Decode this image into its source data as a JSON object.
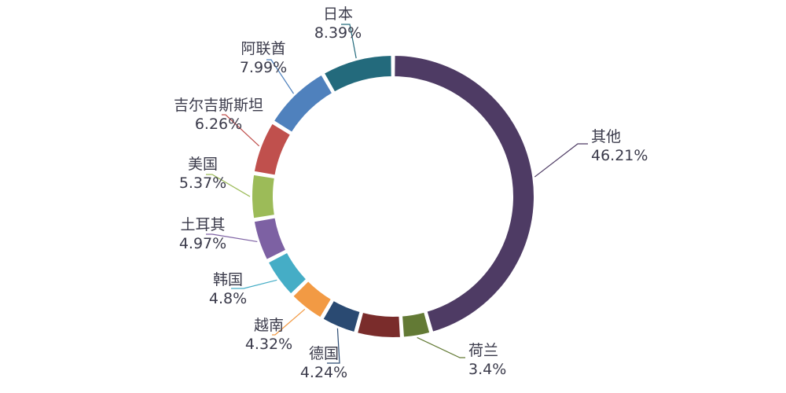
{
  "chart_data": {
    "type": "pie",
    "donut": true,
    "title": "",
    "legend": "none",
    "unit": "%",
    "slices": [
      {
        "name": "其他",
        "value": 46.21,
        "label": "46.21%",
        "color": "#4e3b64"
      },
      {
        "name": "荷兰",
        "value": 3.4,
        "label": "3.4%",
        "color": "#637a35"
      },
      {
        "name": "",
        "value": 5.33,
        "label": "",
        "color": "#7a2c2b"
      },
      {
        "name": "德国",
        "value": 4.24,
        "label": "4.24%",
        "color": "#2a4a72"
      },
      {
        "name": "越南",
        "value": 4.32,
        "label": "4.32%",
        "color": "#f29a44"
      },
      {
        "name": "韩国",
        "value": 4.8,
        "label": "4.8%",
        "color": "#45adc6"
      },
      {
        "name": "土耳其",
        "value": 4.97,
        "label": "4.97%",
        "color": "#7d61a3"
      },
      {
        "name": "美国",
        "value": 5.37,
        "label": "5.37%",
        "color": "#9cbb58"
      },
      {
        "name": "吉尔吉斯斯坦",
        "value": 6.26,
        "label": "6.26%",
        "color": "#c0504d"
      },
      {
        "name": "阿联酋",
        "value": 7.99,
        "label": "7.99%",
        "color": "#4f81bd"
      },
      {
        "name": "日本",
        "value": 8.39,
        "label": "8.39%",
        "color": "#236a7c"
      }
    ]
  }
}
